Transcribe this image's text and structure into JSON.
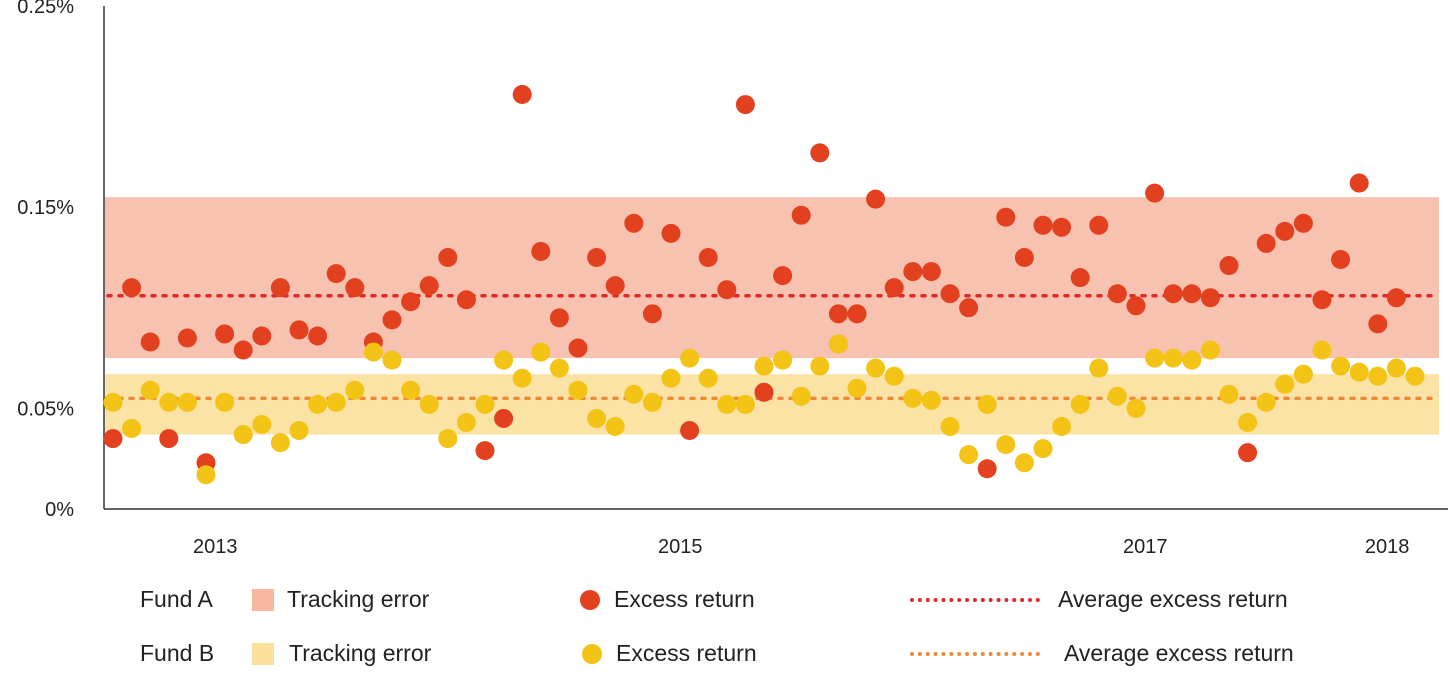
{
  "chart_data": {
    "type": "scatter",
    "title": "",
    "xlabel": "",
    "ylabel": "",
    "ylim": [
      0,
      0.25
    ],
    "y_ticks": [
      "0%",
      "0.05%",
      "0.15%",
      "0.25%"
    ],
    "y_tick_values": [
      0,
      0.05,
      0.15,
      0.25
    ],
    "x_ticks": [
      "2013",
      "2015",
      "2017",
      "2018"
    ],
    "x_tick_index": [
      5.5,
      30.5,
      55.5,
      68.5
    ],
    "grid": false,
    "legend_position": "bottom",
    "series": [
      {
        "name": "Excess return",
        "fund": "Fund A",
        "color": "#e2401f",
        "values": [
          0.035,
          0.11,
          0.083,
          0.035,
          0.085,
          0.023,
          0.087,
          0.079,
          0.086,
          0.11,
          0.089,
          0.086,
          0.117,
          0.11,
          0.083,
          0.094,
          0.103,
          0.111,
          0.125,
          0.104,
          0.029,
          0.045,
          0.206,
          0.128,
          0.095,
          0.08,
          0.125,
          0.111,
          0.142,
          0.097,
          0.137,
          0.039,
          0.125,
          0.109,
          0.201,
          0.058,
          0.116,
          0.146,
          0.177,
          0.097,
          0.097,
          0.154,
          0.11,
          0.118,
          0.118,
          0.107,
          0.1,
          0.02,
          0.145,
          0.125,
          0.141,
          0.14,
          0.115,
          0.141,
          0.107,
          0.101,
          0.157,
          0.107,
          0.107,
          0.105,
          0.121,
          0.028,
          0.132,
          0.138,
          0.142,
          0.104,
          0.124,
          0.162,
          0.092,
          0.105
        ]
      },
      {
        "name": "Excess return",
        "fund": "Fund B",
        "color": "#f3c315",
        "values": [
          0.053,
          0.04,
          0.059,
          0.053,
          0.053,
          0.017,
          0.053,
          0.037,
          0.042,
          0.033,
          0.039,
          0.052,
          0.053,
          0.059,
          0.078,
          0.074,
          0.059,
          0.052,
          0.035,
          0.043,
          0.052,
          0.074,
          0.065,
          0.078,
          0.07,
          0.059,
          0.045,
          0.041,
          0.057,
          0.053,
          0.065,
          0.075,
          0.065,
          0.052,
          0.052,
          0.071,
          0.074,
          0.056,
          0.071,
          0.082,
          0.06,
          0.07,
          0.066,
          0.055,
          0.054,
          0.041,
          0.027,
          0.052,
          0.032,
          0.023,
          0.03,
          0.041,
          0.052,
          0.07,
          0.056,
          0.05,
          0.075,
          0.075,
          0.074,
          0.079,
          0.057,
          0.043,
          0.053,
          0.062,
          0.067,
          0.079,
          0.071,
          0.068,
          0.066,
          0.07,
          0.066
        ]
      },
      {
        "name": "Average excess return",
        "fund": "Fund A",
        "color": "#e02a2a",
        "value": 0.106
      },
      {
        "name": "Average excess return",
        "fund": "Fund B",
        "color": "#f0883a",
        "value": 0.055
      }
    ],
    "bands": [
      {
        "name": "Tracking error",
        "fund": "Fund A",
        "color": "#f7c3b0",
        "from": 0.075,
        "to": 0.155
      },
      {
        "name": "Tracking error",
        "fund": "Fund B",
        "color": "#fbe3a6",
        "from": 0.037,
        "to": 0.067
      }
    ]
  },
  "legend": {
    "fund_a": "Fund A",
    "fund_b": "Fund B",
    "tracking_error": "Tracking error",
    "excess_return": "Excess return",
    "average_excess_return": "Average excess return"
  }
}
